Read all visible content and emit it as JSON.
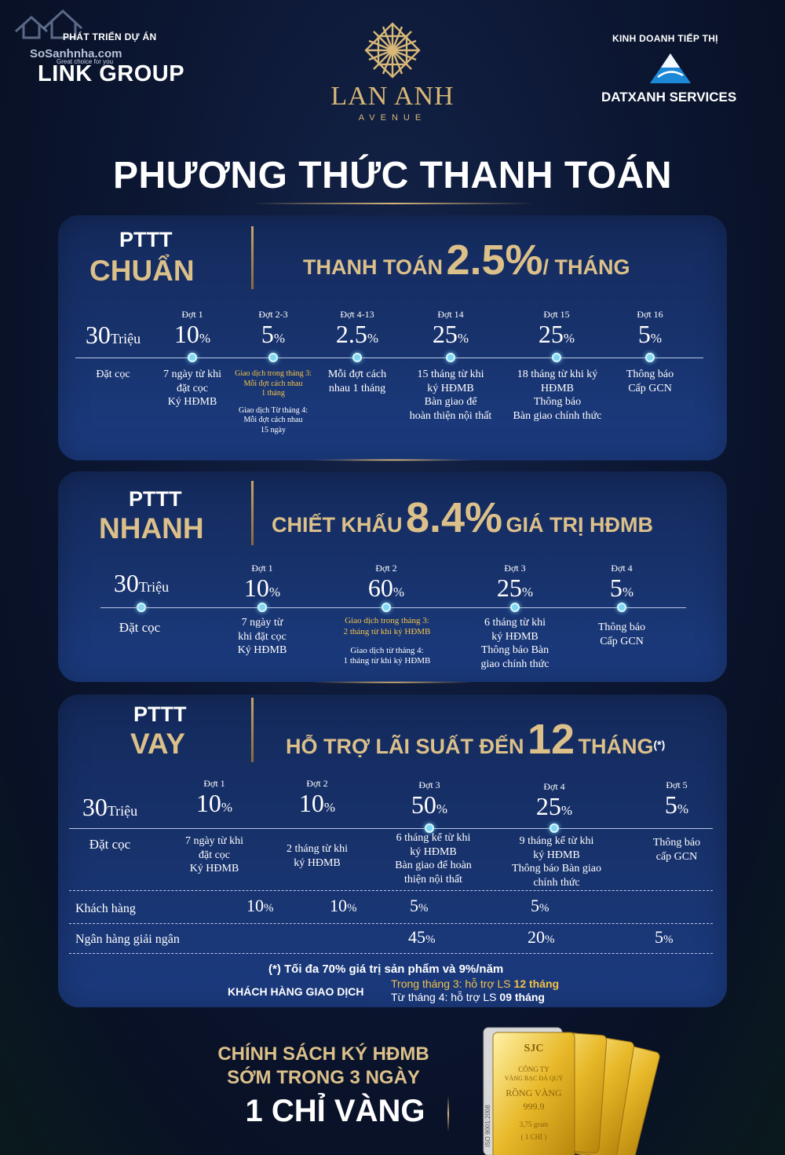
{
  "header": {
    "watermark": "SoSanhnha.com",
    "developer_label": "PHÁT TRIỂN DỰ ÁN",
    "developer_tagline": "Great choice for you",
    "developer_name": "LINK GROUP",
    "brand_name": "LAN ANH",
    "brand_sub": "AVENUE",
    "marketing_label": "KINH DOANH TIẾP THỊ",
    "marketing_name": "DATXANH SERVICES"
  },
  "title": "PHƯƠNG THỨC THANH TOÁN",
  "plans": {
    "chuan": {
      "small": "PTTT",
      "big": "CHUẨN",
      "head_pre": "THANH TOÁN",
      "head_big": "2.5%",
      "head_post": "/ THÁNG",
      "deposit": {
        "value": "30",
        "unit": "Triệu",
        "desc": "Đặt cọc"
      },
      "stages": [
        {
          "label": "Đợt 1",
          "value": "10",
          "pct": "%",
          "desc": [
            "7 ngày từ khi",
            "đặt cọc",
            "Ký HĐMB"
          ]
        },
        {
          "label": "Đợt 2-3",
          "value": "5",
          "pct": "%",
          "desc_gold": [
            "Giao dịch trong tháng 3:",
            "Mỗi đợt cách nhau",
            "1 tháng"
          ],
          "desc_white": [
            "Giao dịch Từ tháng 4:",
            "Mỗi đợt cách nhau",
            "15 ngày"
          ]
        },
        {
          "label": "Đợt 4-13",
          "value": "2.5",
          "pct": "%",
          "desc": [
            "Mỗi đợt cách",
            "nhau 1 tháng"
          ]
        },
        {
          "label": "Đợt 14",
          "value": "25",
          "pct": "%",
          "desc": [
            "15 tháng từ khi",
            "ký HĐMB",
            "Bàn giao để",
            "hoàn thiện nội thất"
          ]
        },
        {
          "label": "Đợt 15",
          "value": "25",
          "pct": "%",
          "desc": [
            "18 tháng từ khi ký",
            "HĐMB",
            "Thông báo",
            "Bàn giao chính thức"
          ]
        },
        {
          "label": "Đợt 16",
          "value": "5",
          "pct": "%",
          "desc": [
            "Thông báo",
            "Cấp GCN"
          ]
        }
      ]
    },
    "nhanh": {
      "small": "PTTT",
      "big": "NHANH",
      "head_pre": "CHIẾT KHẤU",
      "head_big": "8.4%",
      "head_post": "GIÁ TRỊ HĐMB",
      "deposit": {
        "value": "30",
        "unit": "Triệu",
        "desc": "Đặt cọc"
      },
      "stages": [
        {
          "label": "Đợt 1",
          "value": "10",
          "pct": "%",
          "desc": [
            "7 ngày từ",
            "khi đặt cọc",
            "Ký HĐMB"
          ]
        },
        {
          "label": "Đợt 2",
          "value": "60",
          "pct": "%",
          "desc_gold": [
            "Giao dịch trong tháng 3:",
            "2 tháng từ khi ký HĐMB"
          ],
          "desc_white": [
            "Giao dịch từ tháng 4:",
            "1 tháng từ khi ký HĐMB"
          ]
        },
        {
          "label": "Đợt 3",
          "value": "25",
          "pct": "%",
          "desc": [
            "6 tháng từ khi",
            "ký HĐMB",
            "Thông báo Bàn",
            "giao chính thức"
          ]
        },
        {
          "label": "Đợt 4",
          "value": "5",
          "pct": "%",
          "desc": [
            "Thông báo",
            "Cấp GCN"
          ]
        }
      ]
    },
    "vay": {
      "small": "PTTT",
      "big": "VAY",
      "head_pre": "HỖ TRỢ LÃI SUẤT ĐẾN",
      "head_big": "12",
      "head_post": "THÁNG",
      "head_note": "(*)",
      "deposit": {
        "value": "30",
        "unit": "Triệu",
        "desc": "Đặt cọc"
      },
      "stages": [
        {
          "label": "Đợt 1",
          "value": "10",
          "pct": "%",
          "desc": [
            "7 ngày từ khi",
            "đặt cọc",
            "Ký HĐMB"
          ]
        },
        {
          "label": "Đợt 2",
          "value": "10",
          "pct": "%",
          "desc": [
            "2 tháng từ khi",
            "ký HĐMB"
          ]
        },
        {
          "label": "Đợt 3",
          "value": "50",
          "pct": "%",
          "desc": [
            "6 tháng kể từ khi",
            "ký HĐMB",
            "Bàn giao để hoàn",
            "thiện nội thất"
          ]
        },
        {
          "label": "Đợt 4",
          "value": "25",
          "pct": "%",
          "desc": [
            "9 tháng kể từ khi",
            "ký HĐMB",
            "Thông báo Bàn giao",
            "chính thức"
          ]
        },
        {
          "label": "Đợt 5",
          "value": "5",
          "pct": "%",
          "desc": [
            "Thông báo",
            "cấp GCN"
          ]
        }
      ],
      "rows": [
        {
          "label": "Khách hàng",
          "values": [
            "10",
            "10",
            "5",
            "5",
            ""
          ]
        },
        {
          "label": "Ngân hàng giải ngân",
          "values": [
            "",
            "",
            "45",
            "20",
            "5"
          ]
        }
      ],
      "pct": "%",
      "footnote": "(*) Tối đa 70% giá trị sản phẩm và 9%/năm",
      "kh_label": "KHÁCH HÀNG GIAO DỊCH",
      "kh_line1_pre": "Trong tháng 3:  hỗ trợ LS ",
      "kh_line1_bold": "12 tháng",
      "kh_line2_pre": "Từ tháng 4: hỗ trợ LS ",
      "kh_line2_bold": "09 tháng"
    }
  },
  "policy": {
    "line1": "CHÍNH SÁCH KÝ HĐMB",
    "line2": "SỚM TRONG 3 NGÀY",
    "line3": "1 CHỈ VÀNG"
  },
  "gold_bar": {
    "brand": "SJC",
    "company": "CÔNG TY",
    "company2": "VÀNG BẠC ĐÁ QUÝ",
    "product": "RỒNG VÀNG",
    "purity": "999.9",
    "weight": "3,75 gram",
    "unit": "( 1 CHỈ )",
    "iso": "ISO 9001:2008"
  },
  "colors": {
    "gold": "#dcc08a",
    "highlight": "#f4c347",
    "panel": "#18336e",
    "background": "#0c1733"
  }
}
